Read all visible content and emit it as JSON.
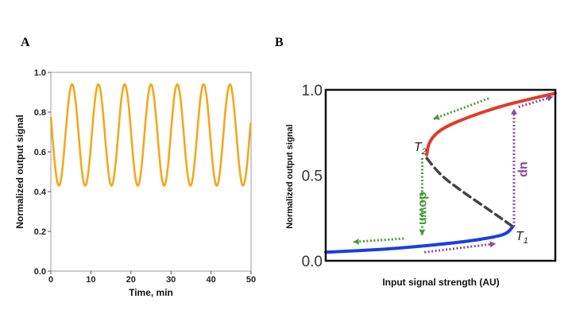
{
  "chart_data": [
    {
      "panel": "A",
      "type": "line",
      "xlabel": "Time, min",
      "ylabel": "Normalized output signal",
      "xlim": [
        0,
        50
      ],
      "ylim": [
        0,
        1
      ],
      "xticks": [
        "0",
        "10",
        "20",
        "30",
        "40",
        "50"
      ],
      "yticks": [
        "0.0",
        "0.2",
        "0.4",
        "0.6",
        "0.8",
        "1.0"
      ],
      "series": [
        {
          "name": "oscillation",
          "color": "#f0a020",
          "mean": 0.685,
          "amplitude": 0.255,
          "period": 6.57,
          "first_peak": 5.3,
          "min": 0.43,
          "max": 0.94
        }
      ]
    },
    {
      "panel": "B",
      "type": "line",
      "xlabel": "Input signal  strength (AU)",
      "ylabel": "Normalized  output  signal",
      "xlim": [
        0,
        1
      ],
      "ylim": [
        0,
        1
      ],
      "yticks": [
        "0.0",
        "0.5",
        "1.0"
      ],
      "series": [
        {
          "name": "low branch",
          "color": "#1a3ee0",
          "style": "solid",
          "points": [
            [
              0,
              0.05
            ],
            [
              0.3,
              0.07
            ],
            [
              0.6,
              0.11
            ],
            [
              0.74,
              0.14
            ],
            [
              0.79,
              0.16
            ],
            [
              0.815,
              0.2
            ]
          ]
        },
        {
          "name": "high branch",
          "color": "#e03c28",
          "style": "solid",
          "points": [
            [
              0.44,
              0.62
            ],
            [
              0.45,
              0.7
            ],
            [
              0.5,
              0.77
            ],
            [
              0.6,
              0.83
            ],
            [
              0.75,
              0.9
            ],
            [
              0.9,
              0.95
            ],
            [
              1,
              0.98
            ]
          ]
        },
        {
          "name": "unstable branch",
          "color": "#444444",
          "style": "dashed",
          "points": [
            [
              0.44,
              0.6
            ],
            [
              0.5,
              0.5
            ],
            [
              0.6,
              0.4
            ],
            [
              0.72,
              0.29
            ],
            [
              0.815,
              0.2
            ]
          ]
        }
      ],
      "arrows": [
        {
          "name": "down",
          "color": "#4a9a3a",
          "from": [
            0.42,
            0.6
          ],
          "to": [
            0.42,
            0.15
          ]
        },
        {
          "name": "green-top",
          "color": "#4a9a3a",
          "from": [
            0.71,
            0.95
          ],
          "to": [
            0.47,
            0.83
          ]
        },
        {
          "name": "green-bottom",
          "color": "#4a9a3a",
          "from": [
            0.34,
            0.13
          ],
          "to": [
            0.12,
            0.11
          ]
        },
        {
          "name": "up",
          "color": "#8a4a9a",
          "from": [
            0.82,
            0.2
          ],
          "to": [
            0.82,
            0.89
          ]
        },
        {
          "name": "purple-bottom",
          "color": "#8a4a9a",
          "from": [
            0.43,
            0.05
          ],
          "to": [
            0.74,
            0.1
          ]
        },
        {
          "name": "purple-top",
          "color": "#8a4a9a",
          "from": [
            0.84,
            0.9
          ],
          "to": [
            0.99,
            0.96
          ]
        }
      ],
      "annotations": {
        "down": "down",
        "up": "up",
        "t1": "T",
        "t1_sub": "1",
        "t2": "T",
        "t2_sub": "2"
      }
    }
  ],
  "panels": {
    "a": "A",
    "b": "B"
  }
}
